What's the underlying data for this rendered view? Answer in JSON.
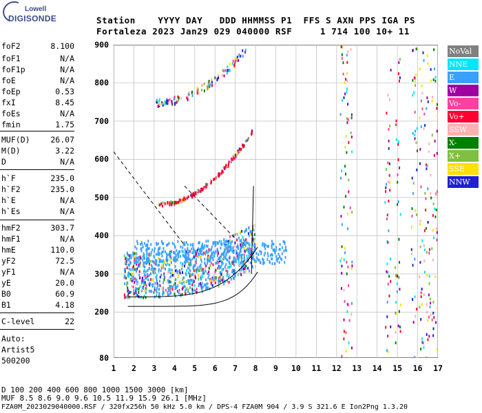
{
  "logo": {
    "line1": "Lowell",
    "line2": "DIGISONDE"
  },
  "header": {
    "line1": "Station    YYYY DAY   DDD HHMMSS P1  FFS S AXN PPS IGA PS",
    "line2": "Fortaleza 2023 Jan29 029 040000 RSF     1 714 100 10+ 11"
  },
  "params": [
    {
      "key": "foF2",
      "value": "8.100"
    },
    {
      "key": "foF1",
      "value": "N/A"
    },
    {
      "key": "foF1p",
      "value": "N/A"
    },
    {
      "key": "foE",
      "value": "N/A"
    },
    {
      "key": "foEp",
      "value": "0.53"
    },
    {
      "key": "fxI",
      "value": "8.45"
    },
    {
      "key": "foEs",
      "value": "N/A"
    },
    {
      "key": "fmin",
      "value": "1.75"
    },
    {
      "key": "MUF(D)",
      "value": "26.07"
    },
    {
      "key": "M(D)",
      "value": "3.22"
    },
    {
      "key": "D",
      "value": "N/A"
    },
    {
      "key": "h`F",
      "value": "235.0"
    },
    {
      "key": "h`F2",
      "value": "235.0"
    },
    {
      "key": "h`E",
      "value": "N/A"
    },
    {
      "key": "h`Es",
      "value": "N/A"
    },
    {
      "key": "hmF2",
      "value": "303.7"
    },
    {
      "key": "hmF1",
      "value": "N/A"
    },
    {
      "key": "hmE",
      "value": "110.0"
    },
    {
      "key": "yF2",
      "value": "72.5"
    },
    {
      "key": "yF1",
      "value": "N/A"
    },
    {
      "key": "yE",
      "value": "20.0"
    },
    {
      "key": "B0",
      "value": "60.9"
    },
    {
      "key": "B1",
      "value": "4.18"
    },
    {
      "key": "C-level",
      "value": "22"
    }
  ],
  "auto": {
    "line1": "Auto:",
    "line2": "Artist5",
    "line3": "500200"
  },
  "legend": [
    {
      "label": "NoVal",
      "color": "#808080"
    },
    {
      "label": "NNE",
      "color": "#00e5ff"
    },
    {
      "label": "E",
      "color": "#3aa0ff"
    },
    {
      "label": "W",
      "color": "#a000a0"
    },
    {
      "label": "Vo-",
      "color": "#ff40a0"
    },
    {
      "label": "Vo+",
      "color": "#ff0030"
    },
    {
      "label": "SSW",
      "color": "#ffb0b0"
    },
    {
      "label": "X-",
      "color": "#008000"
    },
    {
      "label": "X+",
      "color": "#80c040"
    },
    {
      "label": "SSE",
      "color": "#ffe000"
    },
    {
      "label": "NNW",
      "color": "#2020d0"
    }
  ],
  "axes": {
    "y_ticks": [
      "900",
      "800",
      "700",
      "600",
      "500",
      "400",
      "300",
      "200",
      "80"
    ],
    "x_ticks": [
      "1",
      "2",
      "3",
      "4",
      "5",
      "6",
      "7",
      "8",
      "9",
      "10",
      "11",
      "12",
      "13",
      "14",
      "15",
      "16",
      "17"
    ]
  },
  "bottom": {
    "d_line": "D     100  200  400  600  800 1000 1500 3000 [km]",
    "muf_line": "MUF   8.5  8.6  9.0  9.6 10.5 11.9 15.9 26.1 [MHz]",
    "file_line": "FZA0M_2023029040000.RSF / 320fx256h 50 kHz 5.0 km / DPS-4 FZA0M 904 / 3.9 S 321.6 E   Ion2Png 1.3.20"
  }
}
